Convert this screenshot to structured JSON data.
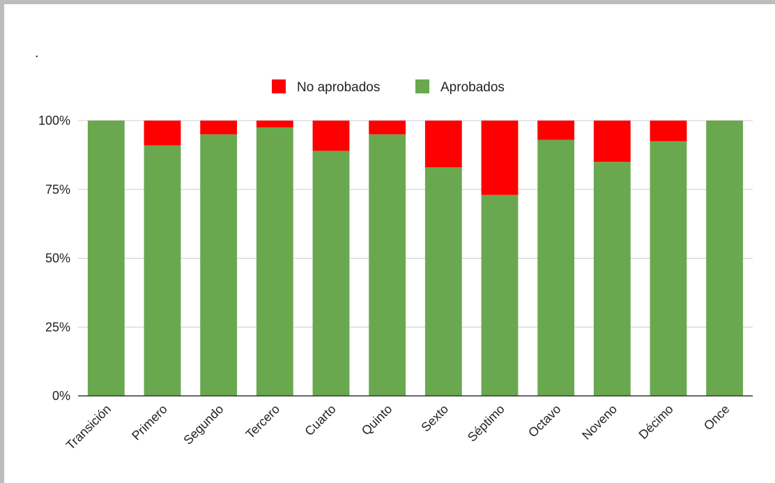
{
  "title": ".",
  "chart_data": {
    "type": "bar",
    "stacked": true,
    "categories": [
      "Transición",
      "Primero",
      "Segundo",
      "Tercero",
      "Cuarto",
      "Quinto",
      "Sexto",
      "Séptimo",
      "Octavo",
      "Noveno",
      "Décimo",
      "Once"
    ],
    "series": [
      {
        "name": "Aprobados",
        "color": "#6aa84f",
        "values": [
          100,
          91,
          95,
          97.5,
          89,
          95,
          83,
          73,
          93,
          85,
          92.5,
          100
        ]
      },
      {
        "name": "No aprobados",
        "color": "#ff0000",
        "values": [
          0,
          9,
          5,
          2.5,
          11,
          5,
          17,
          27,
          7,
          15,
          7.5,
          0
        ]
      }
    ],
    "legend": [
      "No aprobados",
      "Aprobados"
    ],
    "legend_position": "top",
    "y_ticks": [
      "0%",
      "25%",
      "50%",
      "75%",
      "100%"
    ],
    "ylim": [
      0,
      100
    ],
    "grid": true,
    "xlabel": "",
    "ylabel": ""
  },
  "frame_color": "#bdbdbd",
  "grid_color": "#cccccc",
  "axis_color": "#333333"
}
